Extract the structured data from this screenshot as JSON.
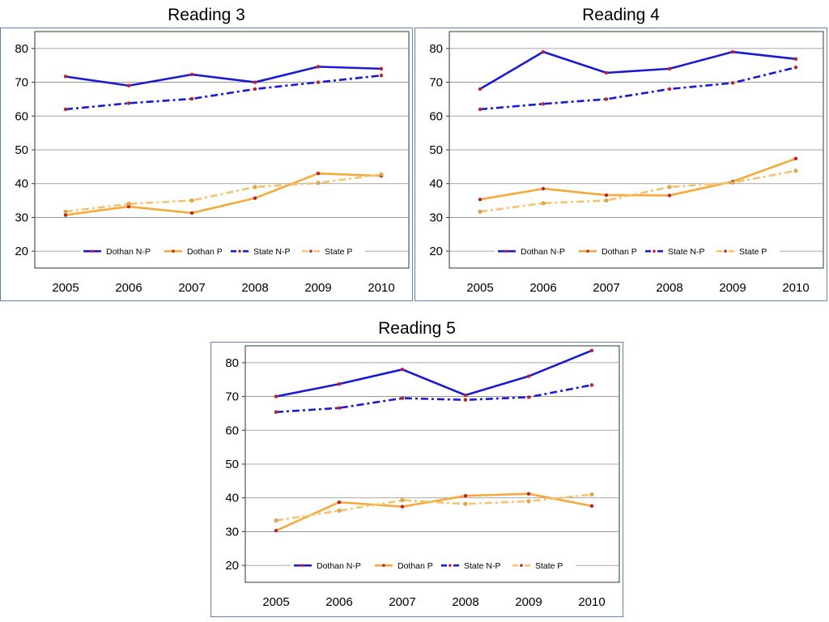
{
  "colors": {
    "dothan_np": "#1a1ad4",
    "dothan_p": "#f5a93b",
    "state_np": "#1a1ad4",
    "state_p": "#f7c26e",
    "marker": "#c0202a",
    "grid": "#8a8a8a",
    "frame": "#5b86b6"
  },
  "chart_data": [
    {
      "type": "line",
      "title": "Reading 3",
      "categories": [
        "2005",
        "2006",
        "2007",
        "2008",
        "2009",
        "2010"
      ],
      "ylim": [
        15,
        85
      ],
      "yticks": [
        "20",
        "30",
        "40",
        "50",
        "60",
        "70",
        "80"
      ],
      "grid": true,
      "legend_position": "bottom-inside",
      "series": [
        {
          "name": "Dothan N-P",
          "values": [
            71.7,
            69.0,
            72.3,
            70.0,
            74.6,
            74.0
          ],
          "style": "solid",
          "color": "#1a1ad4"
        },
        {
          "name": "Dothan P",
          "values": [
            30.7,
            33.2,
            31.3,
            35.7,
            43.0,
            42.3
          ],
          "style": "solid",
          "color": "#f5a93b"
        },
        {
          "name": "State N-P",
          "values": [
            62.0,
            63.8,
            65.1,
            68.0,
            70.0,
            72.0
          ],
          "style": "dashdot",
          "color": "#1a1ad4"
        },
        {
          "name": "State P",
          "values": [
            31.7,
            34.0,
            35.0,
            39.0,
            40.2,
            42.7
          ],
          "style": "dashdot",
          "color": "#f7c26e"
        }
      ]
    },
    {
      "type": "line",
      "title": "Reading 4",
      "categories": [
        "2005",
        "2006",
        "2007",
        "2008",
        "2009",
        "2010"
      ],
      "ylim": [
        15,
        85
      ],
      "yticks": [
        "20",
        "30",
        "40",
        "50",
        "60",
        "70",
        "80"
      ],
      "grid": true,
      "legend_position": "bottom-inside",
      "series": [
        {
          "name": "Dothan N-P",
          "values": [
            68.0,
            79.0,
            72.8,
            74.0,
            79.0,
            76.9
          ],
          "style": "solid",
          "color": "#1a1ad4"
        },
        {
          "name": "Dothan P",
          "values": [
            35.3,
            38.5,
            36.6,
            36.5,
            40.6,
            47.4
          ],
          "style": "solid",
          "color": "#f5a93b"
        },
        {
          "name": "State N-P",
          "values": [
            62.0,
            63.6,
            65.0,
            68.0,
            69.8,
            74.4
          ],
          "style": "dashdot",
          "color": "#1a1ad4"
        },
        {
          "name": "State P",
          "values": [
            31.7,
            34.2,
            35.0,
            39.0,
            40.3,
            43.8
          ],
          "style": "dashdot",
          "color": "#f7c26e"
        }
      ]
    },
    {
      "type": "line",
      "title": "Reading 5",
      "categories": [
        "2005",
        "2006",
        "2007",
        "2008",
        "2009",
        "2010"
      ],
      "ylim": [
        15,
        85
      ],
      "yticks": [
        "20",
        "30",
        "40",
        "50",
        "60",
        "70",
        "80"
      ],
      "grid": true,
      "legend_position": "bottom-inside",
      "series": [
        {
          "name": "Dothan N-P",
          "values": [
            70.0,
            73.7,
            78.0,
            70.4,
            76.0,
            83.6
          ],
          "style": "solid",
          "color": "#1a1ad4"
        },
        {
          "name": "Dothan P",
          "values": [
            30.3,
            38.7,
            37.4,
            40.6,
            41.2,
            37.6
          ],
          "style": "solid",
          "color": "#f5a93b"
        },
        {
          "name": "State N-P",
          "values": [
            65.4,
            66.6,
            69.5,
            69.0,
            69.8,
            73.4
          ],
          "style": "dashdot",
          "color": "#1a1ad4"
        },
        {
          "name": "State P",
          "values": [
            33.3,
            36.2,
            39.3,
            38.2,
            39.0,
            41.0
          ],
          "style": "dashdot",
          "color": "#f7c26e"
        }
      ]
    }
  ]
}
